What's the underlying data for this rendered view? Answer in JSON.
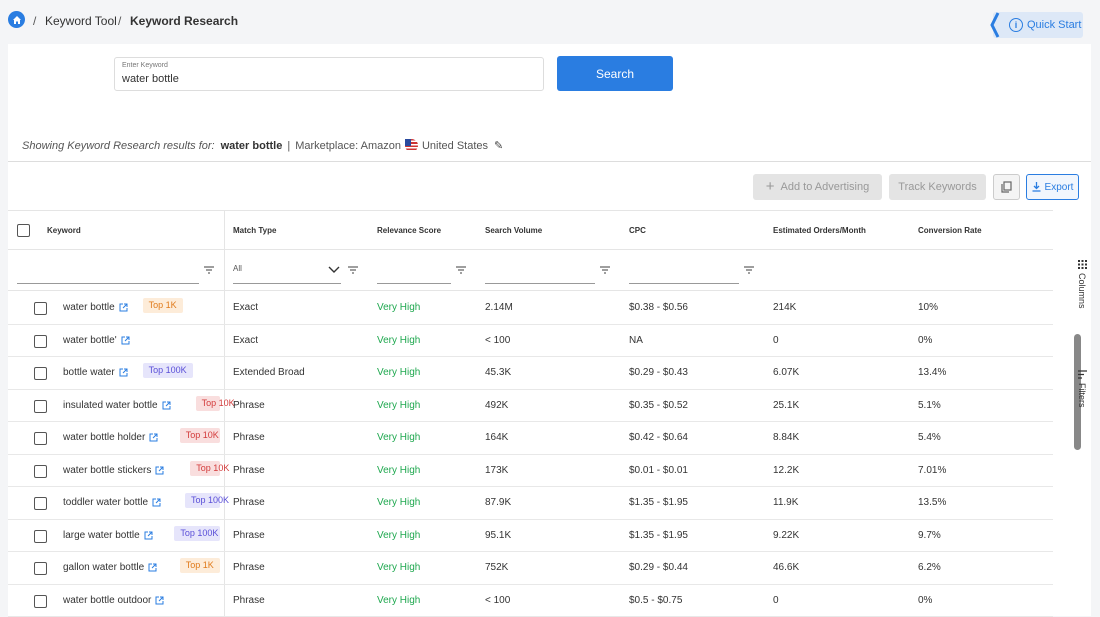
{
  "breadcrumb": {
    "items": [
      "Keyword Tool",
      "Keyword Research"
    ],
    "separator": "/"
  },
  "quick_start": {
    "label": "Quick Start",
    "info_glyph": "i"
  },
  "search": {
    "legend": "Enter Keyword",
    "value": "water bottle",
    "button_label": "Search"
  },
  "results_summary": {
    "prefix": "Showing Keyword Research results for:",
    "keyword": "water bottle",
    "separator": "|",
    "marketplace": "Marketplace: Amazon",
    "country": "United States"
  },
  "toolbar": {
    "add_to_advertising": "Add to Advertising",
    "track_keywords": "Track Keywords",
    "export": "Export",
    "add_glyph": "+"
  },
  "table": {
    "columns": [
      "Keyword",
      "Match Type",
      "Relevance Score",
      "Search Volume",
      "CPC",
      "Estimated Orders/Month",
      "Conversion Rate"
    ],
    "match_type_filter": "All",
    "rows": [
      {
        "keyword": "water bottle",
        "badge": "Top 1K",
        "badge_type": "b1k",
        "match": "Exact",
        "relevance": "Very High",
        "volume": "2.14M",
        "cpc": "$0.38 - $0.56",
        "orders": "214K",
        "conversion": "10%"
      },
      {
        "keyword": "water bottle'",
        "badge": "",
        "badge_type": "",
        "match": "Exact",
        "relevance": "Very High",
        "volume": "< 100",
        "cpc": "NA",
        "orders": "0",
        "conversion": "0%"
      },
      {
        "keyword": "bottle water",
        "badge": "Top 100K",
        "badge_type": "b100k",
        "match": "Extended Broad",
        "relevance": "Very High",
        "volume": "45.3K",
        "cpc": "$0.29 - $0.43",
        "orders": "6.07K",
        "conversion": "13.4%"
      },
      {
        "keyword": "insulated water bottle",
        "badge": "Top 10K",
        "badge_type": "b10k",
        "match": "Phrase",
        "relevance": "Very High",
        "volume": "492K",
        "cpc": "$0.35 - $0.52",
        "orders": "25.1K",
        "conversion": "5.1%"
      },
      {
        "keyword": "water bottle holder",
        "badge": "Top 10K",
        "badge_type": "b10k",
        "match": "Phrase",
        "relevance": "Very High",
        "volume": "164K",
        "cpc": "$0.42 - $0.64",
        "orders": "8.84K",
        "conversion": "5.4%"
      },
      {
        "keyword": "water bottle stickers",
        "badge": "Top 10K",
        "badge_type": "b10k",
        "match": "Phrase",
        "relevance": "Very High",
        "volume": "173K",
        "cpc": "$0.01 - $0.01",
        "orders": "12.2K",
        "conversion": "7.01%"
      },
      {
        "keyword": "toddler water bottle",
        "badge": "Top 100K",
        "badge_type": "b100k",
        "match": "Phrase",
        "relevance": "Very High",
        "volume": "87.9K",
        "cpc": "$1.35 - $1.95",
        "orders": "11.9K",
        "conversion": "13.5%"
      },
      {
        "keyword": "large water bottle",
        "badge": "Top 100K",
        "badge_type": "b100k",
        "match": "Phrase",
        "relevance": "Very High",
        "volume": "95.1K",
        "cpc": "$1.35 - $1.95",
        "orders": "9.22K",
        "conversion": "9.7%"
      },
      {
        "keyword": "gallon water bottle",
        "badge": "Top 1K",
        "badge_type": "b1k",
        "match": "Phrase",
        "relevance": "Very High",
        "volume": "752K",
        "cpc": "$0.29 - $0.44",
        "orders": "46.6K",
        "conversion": "6.2%"
      },
      {
        "keyword": "water bottle outdoor",
        "badge": "",
        "badge_type": "",
        "match": "Phrase",
        "relevance": "Very High",
        "volume": "< 100",
        "cpc": "$0.5 - $0.75",
        "orders": "0",
        "conversion": "0%"
      }
    ]
  },
  "side_panel": {
    "columns": "Columns",
    "filters": "Filters"
  },
  "colors": {
    "accent": "#2a7de1",
    "relevance_green": "#1fa84f"
  },
  "icons": [
    "home-icon",
    "info-icon",
    "flag-icon",
    "pencil-icon",
    "plus-icon",
    "copy-icon",
    "download-icon",
    "filter-icon",
    "chevron-down-icon",
    "external-link-icon",
    "grid-icon",
    "filters-icon"
  ]
}
